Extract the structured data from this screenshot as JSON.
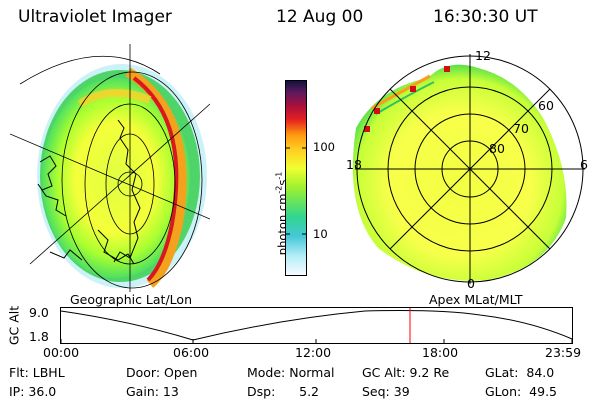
{
  "header": {
    "instrument": "Ultraviolet Imager",
    "date": "12 Aug 00",
    "time": "16:30:30 UT"
  },
  "colorbar": {
    "unit_prefix": "photon cm",
    "exp1": "-2",
    "mid": "s",
    "exp2": "-1",
    "ticks": [
      "100",
      "10"
    ]
  },
  "left_panel": {
    "caption": "Geographic Lat/Lon"
  },
  "right_panel": {
    "caption": "Apex MLat/MLT",
    "mlt_labels": {
      "top": "12",
      "left": "18",
      "right": "6",
      "bottom": "0"
    },
    "lat_labels": [
      "60",
      "70",
      "80"
    ]
  },
  "orbit": {
    "ylabel": "GC Alt",
    "yticks": [
      "9.0",
      "1.8"
    ],
    "xticks": [
      "00:00",
      "06:00",
      "12:00",
      "18:00",
      "23:59"
    ],
    "marker_color": "#ff0000"
  },
  "info": {
    "col1": [
      "Flt: LBHL",
      "IP: 36.0"
    ],
    "col2": [
      "Door: Open",
      "Gain: 13"
    ],
    "col3": [
      "Mode: Normal",
      "Dsp:      5.2"
    ],
    "col4": [
      "GC Alt: 9.2 Re",
      "Seq: 39"
    ],
    "col5": [
      "GLat:  84.0",
      "GLon:  49.5"
    ]
  }
}
